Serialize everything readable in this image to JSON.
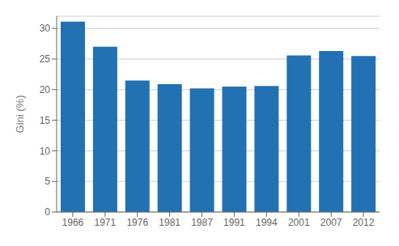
{
  "chart_data": {
    "type": "bar",
    "categories": [
      "1966",
      "1971",
      "1976",
      "1981",
      "1987",
      "1991",
      "1994",
      "2001",
      "2007",
      "2012"
    ],
    "values": [
      31.1,
      27.0,
      21.5,
      20.9,
      20.2,
      20.5,
      20.6,
      25.6,
      26.3,
      25.5
    ],
    "color": "#2271b3",
    "ylabel": "Gini (%)",
    "ylim": [
      0,
      32
    ],
    "yticks": [
      0,
      5,
      10,
      15,
      20,
      25,
      30
    ],
    "grid": true
  }
}
